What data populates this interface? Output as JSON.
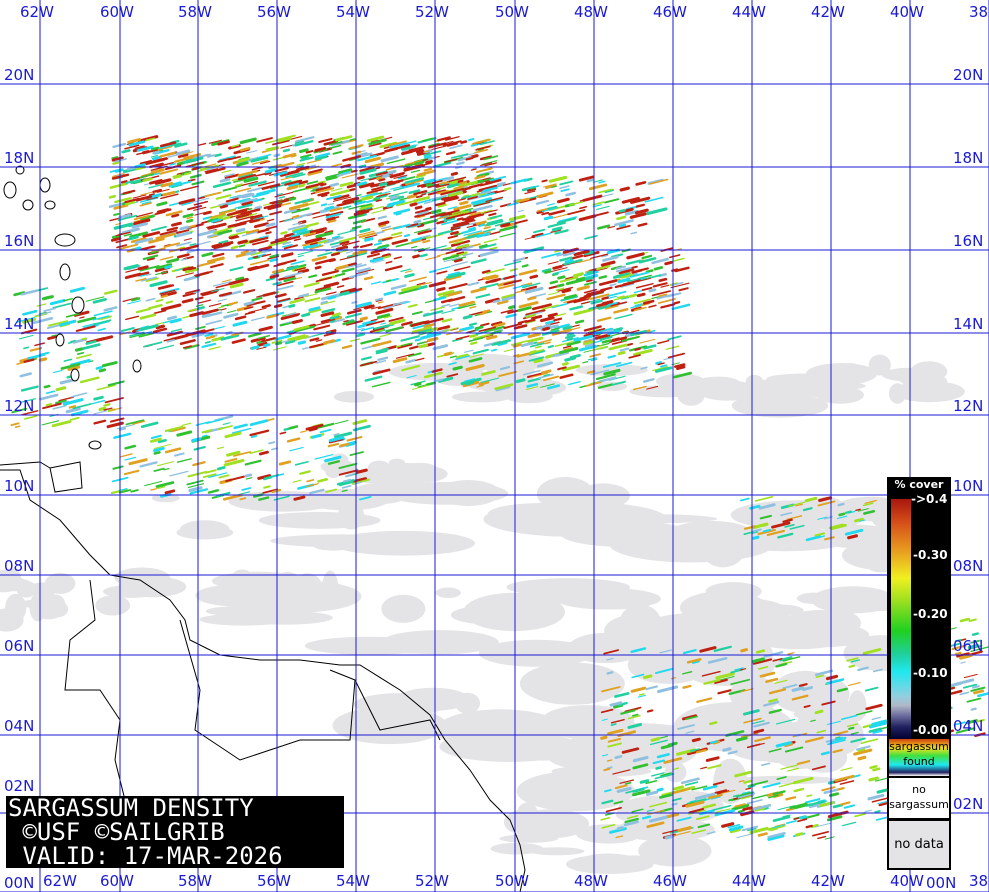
{
  "map": {
    "lon_labels": [
      "62W",
      "60W",
      "58W",
      "56W",
      "54W",
      "52W",
      "50W",
      "48W",
      "46W",
      "44W",
      "42W",
      "40W",
      "38"
    ],
    "lat_labels": [
      "20N",
      "18N",
      "16N",
      "14N",
      "12N",
      "10N",
      "08N",
      "06N",
      "04N",
      "02N",
      "00N"
    ],
    "colors": {
      "grid": "#1a1ad6",
      "land_outline": "#000000",
      "no_data": "#e4e4e6",
      "background": "#ffffff"
    }
  },
  "title": {
    "line1": "SARGASSUM DENSITY",
    "line2": " ©USF ©SAILGRIB",
    "line3": " VALID: 17-MAR-2026"
  },
  "legend": {
    "header": "% cover",
    "ticks": [
      "->0.4",
      "-0.30",
      "-0.20",
      "-0.10",
      "-0.00"
    ],
    "found_label": "sargassum found",
    "no_sargassum_label": "no sargassum",
    "no_data_label": "no data"
  }
}
